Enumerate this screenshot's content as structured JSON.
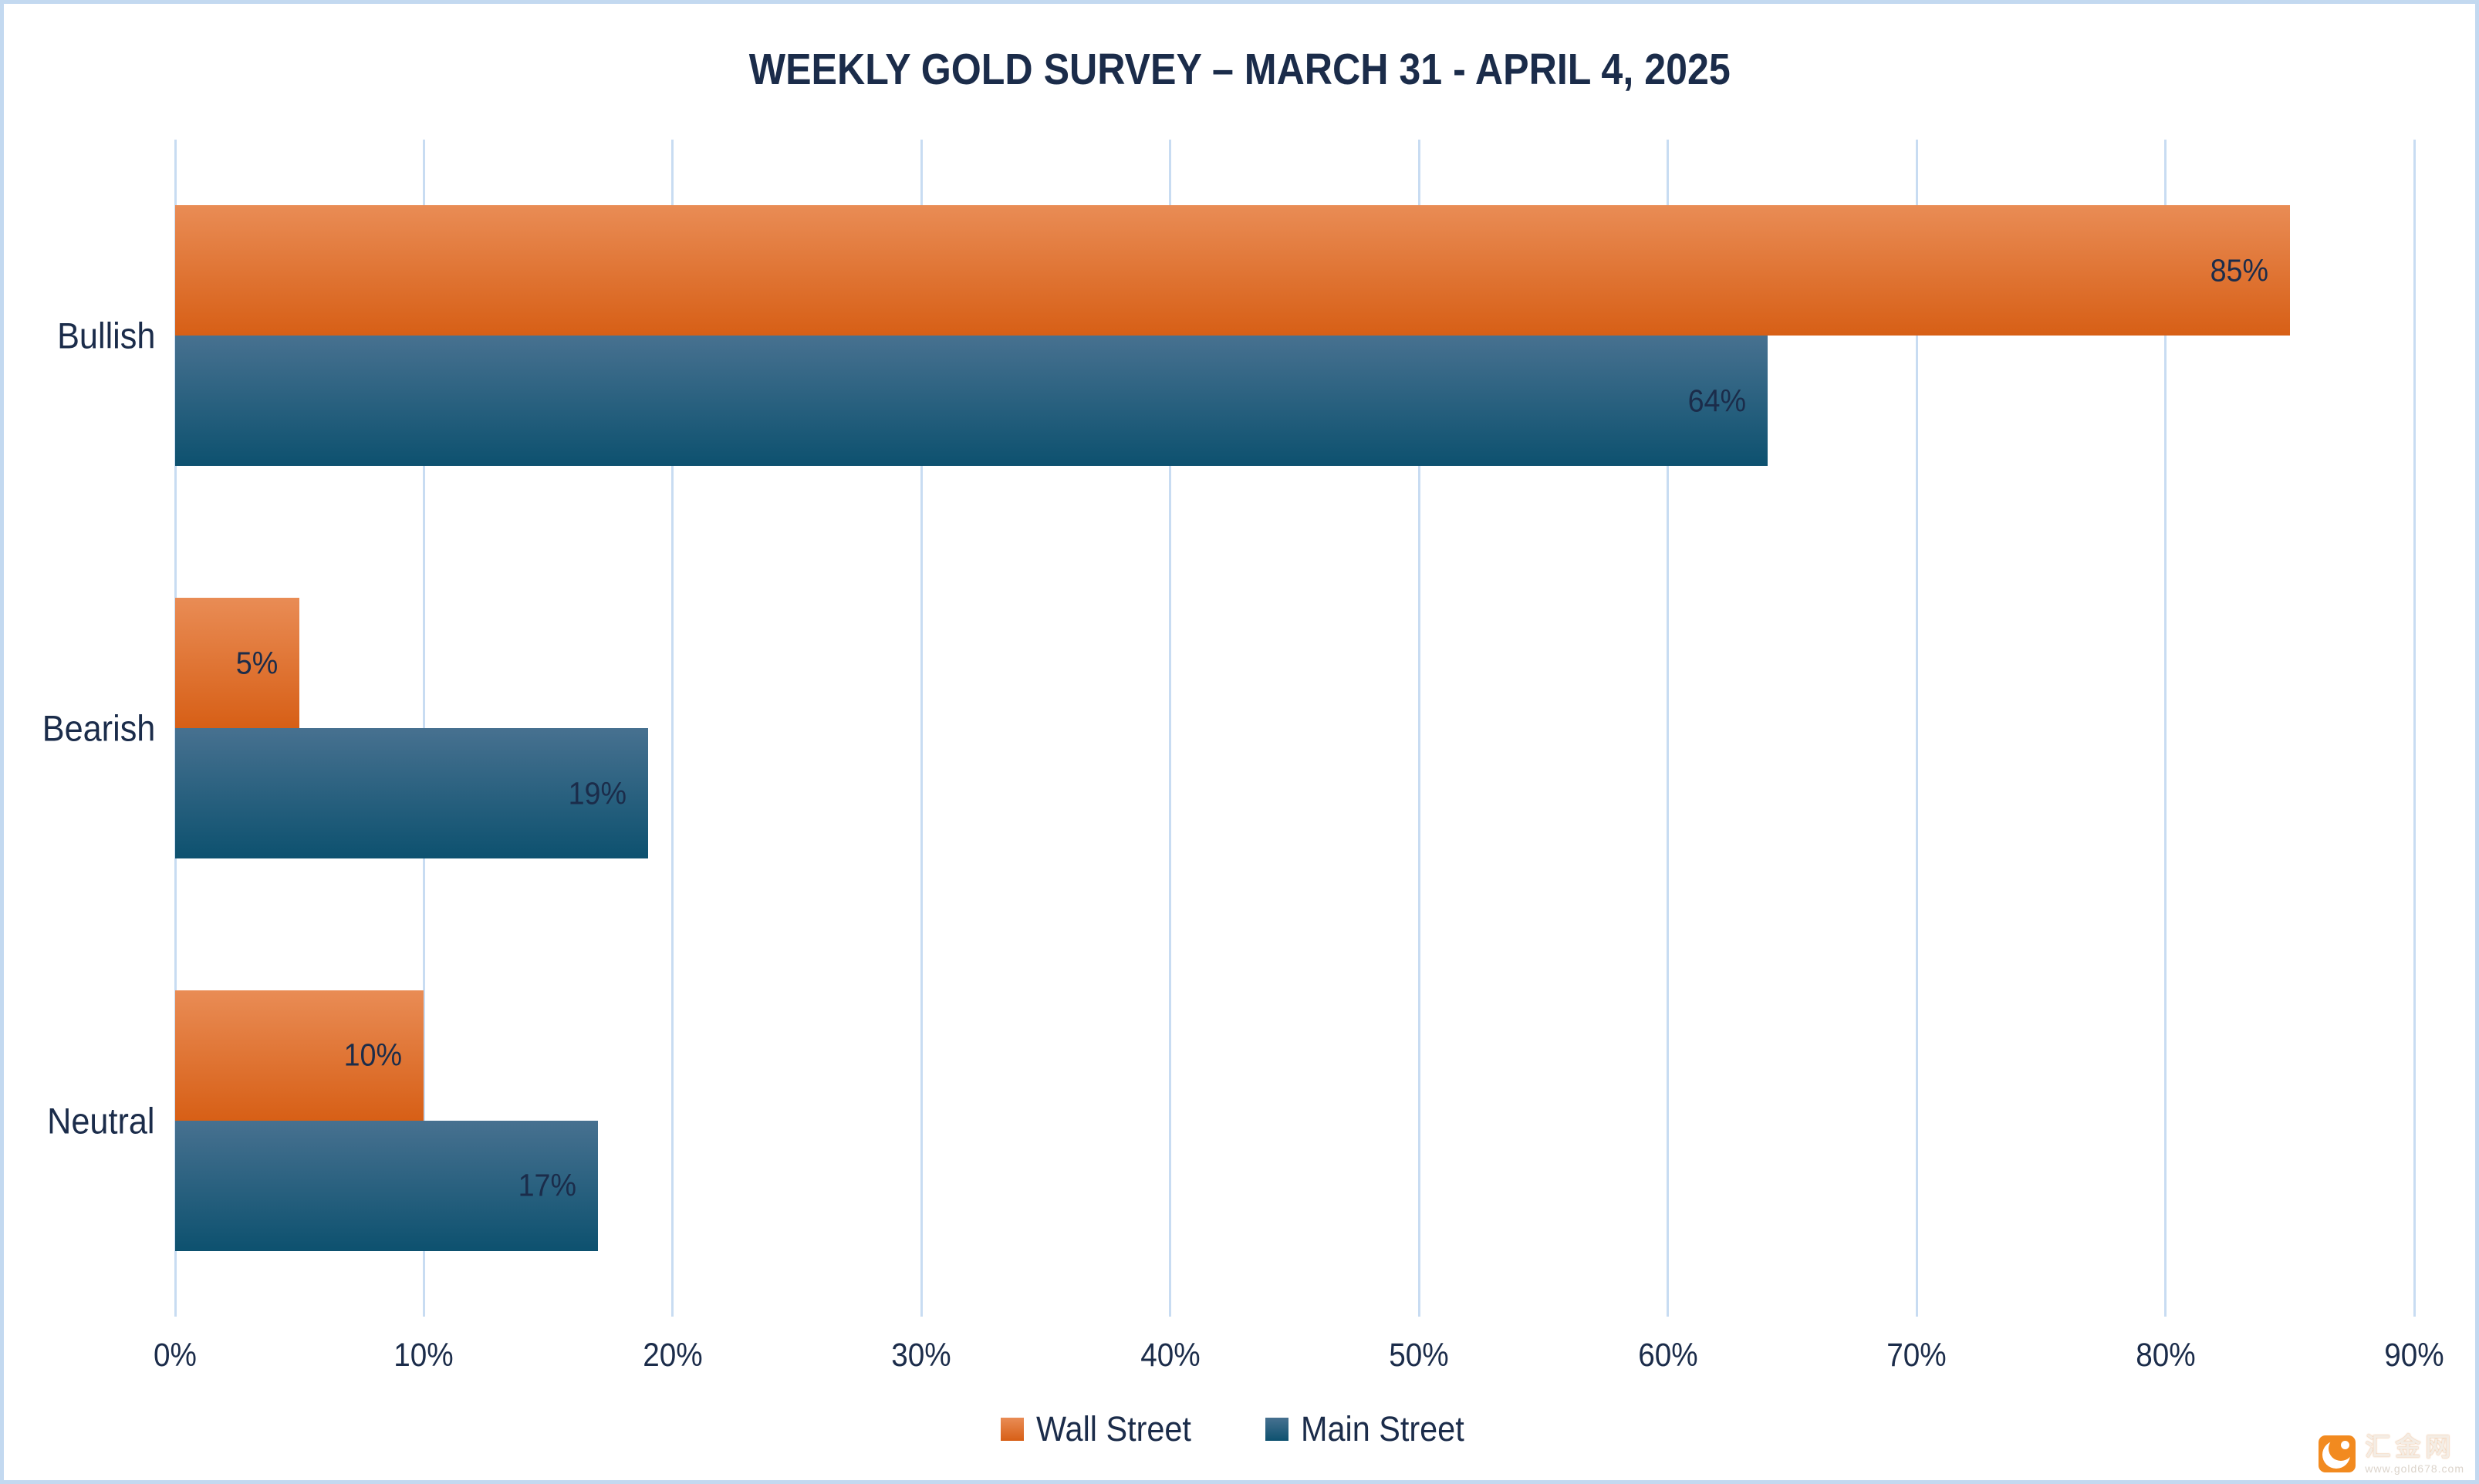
{
  "chart_data": {
    "type": "bar",
    "orientation": "horizontal",
    "title": "WEEKLY GOLD SURVEY – MARCH 31 - APRIL 4, 2025",
    "categories": [
      "Bullish",
      "Bearish",
      "Neutral"
    ],
    "series": [
      {
        "name": "Wall Street",
        "values": [
          85,
          5,
          10
        ],
        "color_top": "#E98C55",
        "color_bottom": "#D75F16"
      },
      {
        "name": "Main Street",
        "values": [
          64,
          19,
          17
        ],
        "color_top": "#477190",
        "color_bottom": "#0D516F"
      }
    ],
    "data_labels": [
      [
        "85%",
        "5%",
        "10%"
      ],
      [
        "64%",
        "19%",
        "17%"
      ]
    ],
    "xlabel": "",
    "ylabel": "",
    "xlim": [
      0,
      90
    ],
    "x_tick_step": 10,
    "x_tick_labels": [
      "0%",
      "10%",
      "20%",
      "30%",
      "40%",
      "50%",
      "60%",
      "70%",
      "80%",
      "90%"
    ],
    "grid": true,
    "legend_position": "bottom",
    "colors": {
      "gridline": "#C8DCF2",
      "frame_border": "#C3D9F0",
      "text": "#1B2C4A",
      "background": "#FFFFFF"
    }
  },
  "watermark": {
    "name": "汇金网",
    "url": "www.gold678.com"
  }
}
